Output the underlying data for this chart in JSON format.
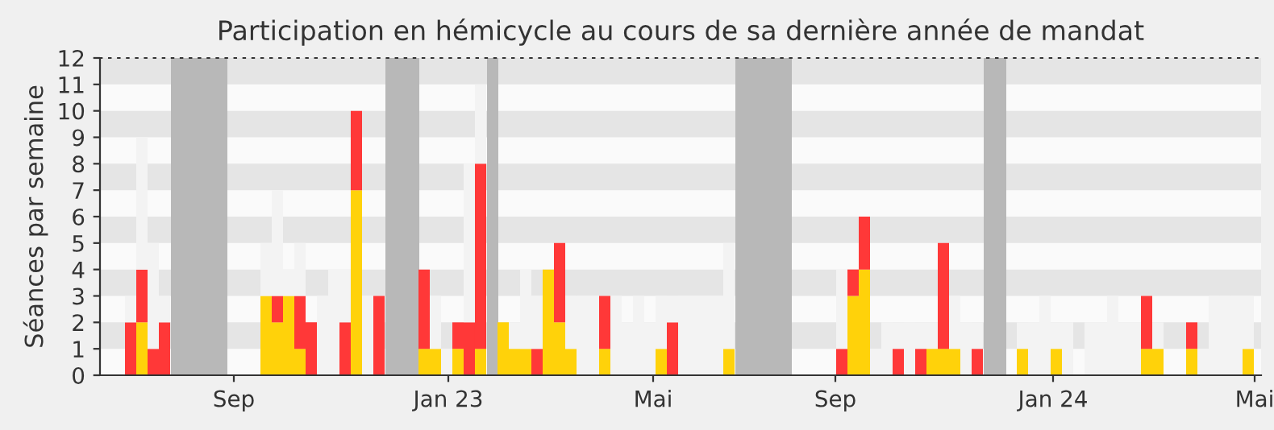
{
  "chart_data": {
    "type": "bar",
    "stacked": true,
    "title": "Participation en hémicycle au cours de sa dernière année de mandat",
    "ylabel": "Séances par semaine",
    "x": [
      "2022-06-30",
      "2022-07-07",
      "2022-07-14",
      "2022-07-21",
      "2022-07-28",
      "2022-08-04",
      "2022-08-11",
      "2022-08-18",
      "2022-08-25",
      "2022-09-01",
      "2022-09-08",
      "2022-09-15",
      "2022-09-22",
      "2022-09-29",
      "2022-10-06",
      "2022-10-13",
      "2022-10-20",
      "2022-10-27",
      "2022-11-03",
      "2022-11-10",
      "2022-11-17",
      "2022-11-24",
      "2022-12-01",
      "2022-12-08",
      "2022-12-15",
      "2022-12-22",
      "2022-12-29",
      "2023-01-05",
      "2023-01-12",
      "2023-01-19",
      "2023-01-26",
      "2023-02-02",
      "2023-02-09",
      "2023-02-16",
      "2023-02-23",
      "2023-03-02",
      "2023-03-09",
      "2023-03-16",
      "2023-03-23",
      "2023-03-30",
      "2023-04-06",
      "2023-04-13",
      "2023-04-20",
      "2023-04-27",
      "2023-05-04",
      "2023-05-11",
      "2023-05-18",
      "2023-05-25",
      "2023-06-01",
      "2023-06-08",
      "2023-06-15",
      "2023-06-22",
      "2023-06-29",
      "2023-07-06",
      "2023-07-13",
      "2023-07-20",
      "2023-07-27",
      "2023-08-03",
      "2023-08-10",
      "2023-08-17",
      "2023-08-24",
      "2023-08-31",
      "2023-09-07",
      "2023-09-14",
      "2023-09-21",
      "2023-09-28",
      "2023-10-05",
      "2023-10-12",
      "2023-10-19",
      "2023-10-26",
      "2023-11-02",
      "2023-11-09",
      "2023-11-16",
      "2023-11-23",
      "2023-11-30",
      "2023-12-07",
      "2023-12-14",
      "2023-12-21",
      "2023-12-28",
      "2024-01-04",
      "2024-01-11",
      "2024-01-18",
      "2024-01-25",
      "2024-02-01",
      "2024-02-08",
      "2024-02-15",
      "2024-02-22",
      "2024-02-29",
      "2024-03-07",
      "2024-03-14",
      "2024-03-21",
      "2024-03-28",
      "2024-04-04",
      "2024-04-11",
      "2024-04-18",
      "2024-04-25",
      "2024-05-02",
      "2024-05-09",
      "2024-05-16",
      "2024-05-23"
    ],
    "series": [
      {
        "color": "#ffd20a",
        "values": [
          null,
          2,
          null,
          null,
          null,
          null,
          null,
          null,
          null,
          null,
          null,
          null,
          3,
          2,
          3,
          1,
          null,
          null,
          null,
          null,
          7,
          null,
          null,
          null,
          null,
          null,
          1,
          1,
          null,
          1,
          null,
          1,
          null,
          2,
          1,
          1,
          null,
          4,
          2,
          1,
          null,
          null,
          1,
          null,
          null,
          null,
          null,
          1,
          null,
          null,
          null,
          null,
          null,
          1,
          null,
          null,
          null,
          null,
          null,
          null,
          null,
          null,
          null,
          null,
          3,
          4,
          null,
          null,
          null,
          null,
          null,
          1,
          1,
          1,
          null,
          null,
          null,
          null,
          null,
          1,
          null,
          null,
          1,
          null,
          null,
          null,
          null,
          null,
          null,
          null,
          1,
          1,
          null,
          null,
          1,
          null,
          null,
          null,
          null,
          1
        ]
      },
      {
        "color": "#ff3838",
        "values": [
          2,
          2,
          1,
          2,
          null,
          null,
          null,
          null,
          null,
          null,
          null,
          null,
          null,
          1,
          null,
          2,
          2,
          null,
          null,
          2,
          3,
          null,
          3,
          null,
          null,
          null,
          3,
          null,
          null,
          1,
          2,
          7,
          null,
          null,
          null,
          null,
          1,
          null,
          3,
          null,
          null,
          null,
          2,
          null,
          null,
          null,
          null,
          null,
          2,
          null,
          null,
          null,
          null,
          null,
          null,
          null,
          null,
          null,
          null,
          null,
          null,
          null,
          null,
          1,
          1,
          2,
          null,
          null,
          1,
          null,
          1,
          null,
          4,
          null,
          null,
          1,
          null,
          null,
          null,
          null,
          null,
          null,
          null,
          null,
          null,
          null,
          null,
          null,
          null,
          null,
          2,
          null,
          null,
          null,
          1,
          null,
          null,
          null,
          null,
          null
        ]
      },
      {
        "color": "#f3f3f3",
        "values": [
          1,
          5,
          4,
          1,
          null,
          null,
          null,
          null,
          null,
          null,
          null,
          null,
          2,
          4,
          1,
          2,
          null,
          3,
          4,
          2,
          null,
          3,
          null,
          null,
          null,
          null,
          null,
          2,
          1,
          null,
          6,
          3,
          null,
          null,
          1,
          3,
          2,
          null,
          null,
          2,
          3,
          3,
          null,
          3,
          2,
          3,
          2,
          2,
          1,
          3,
          3,
          3,
          3,
          4,
          null,
          null,
          null,
          null,
          null,
          null,
          null,
          null,
          null,
          3,
          null,
          null,
          1,
          2,
          1,
          2,
          1,
          1,
          null,
          2,
          2,
          1,
          null,
          null,
          null,
          1,
          2,
          3,
          1,
          2,
          null,
          2,
          2,
          3,
          2,
          2,
          null,
          1,
          null,
          null,
          null,
          1,
          3,
          3,
          3,
          2
        ]
      }
    ],
    "bands": [
      {
        "axis": "x",
        "from": "2022-07-25",
        "to": "2022-08-29",
        "color": "#b8b8b8"
      },
      {
        "axis": "x",
        "from": "2022-12-05",
        "to": "2022-12-26",
        "color": "#b8b8b8"
      },
      {
        "axis": "x",
        "from": "2023-02-06",
        "to": "2023-02-13",
        "color": "#b8b8b8"
      },
      {
        "axis": "x",
        "from": "2023-07-10",
        "to": "2023-08-14",
        "color": "#b8b8b8"
      },
      {
        "axis": "x",
        "from": "2023-12-11",
        "to": "2023-12-25",
        "color": "#b8b8b8"
      }
    ],
    "xlim": [
      "2022-06-11",
      "2024-05-31"
    ],
    "xticks": [
      {
        "value": "2022-09-02",
        "label": "Sep"
      },
      {
        "value": "2023-01-13",
        "label": "Jan 23"
      },
      {
        "value": "2023-05-20",
        "label": "Mai"
      },
      {
        "value": "2023-09-10",
        "label": "Sep"
      },
      {
        "value": "2024-01-23",
        "label": "Jan 24"
      },
      {
        "value": "2024-05-27",
        "label": "Mai"
      }
    ],
    "ylim": [
      0,
      12
    ],
    "yticks": [
      0,
      1,
      2,
      3,
      4,
      5,
      6,
      7,
      8,
      9,
      10,
      11,
      12
    ],
    "legend": false
  }
}
